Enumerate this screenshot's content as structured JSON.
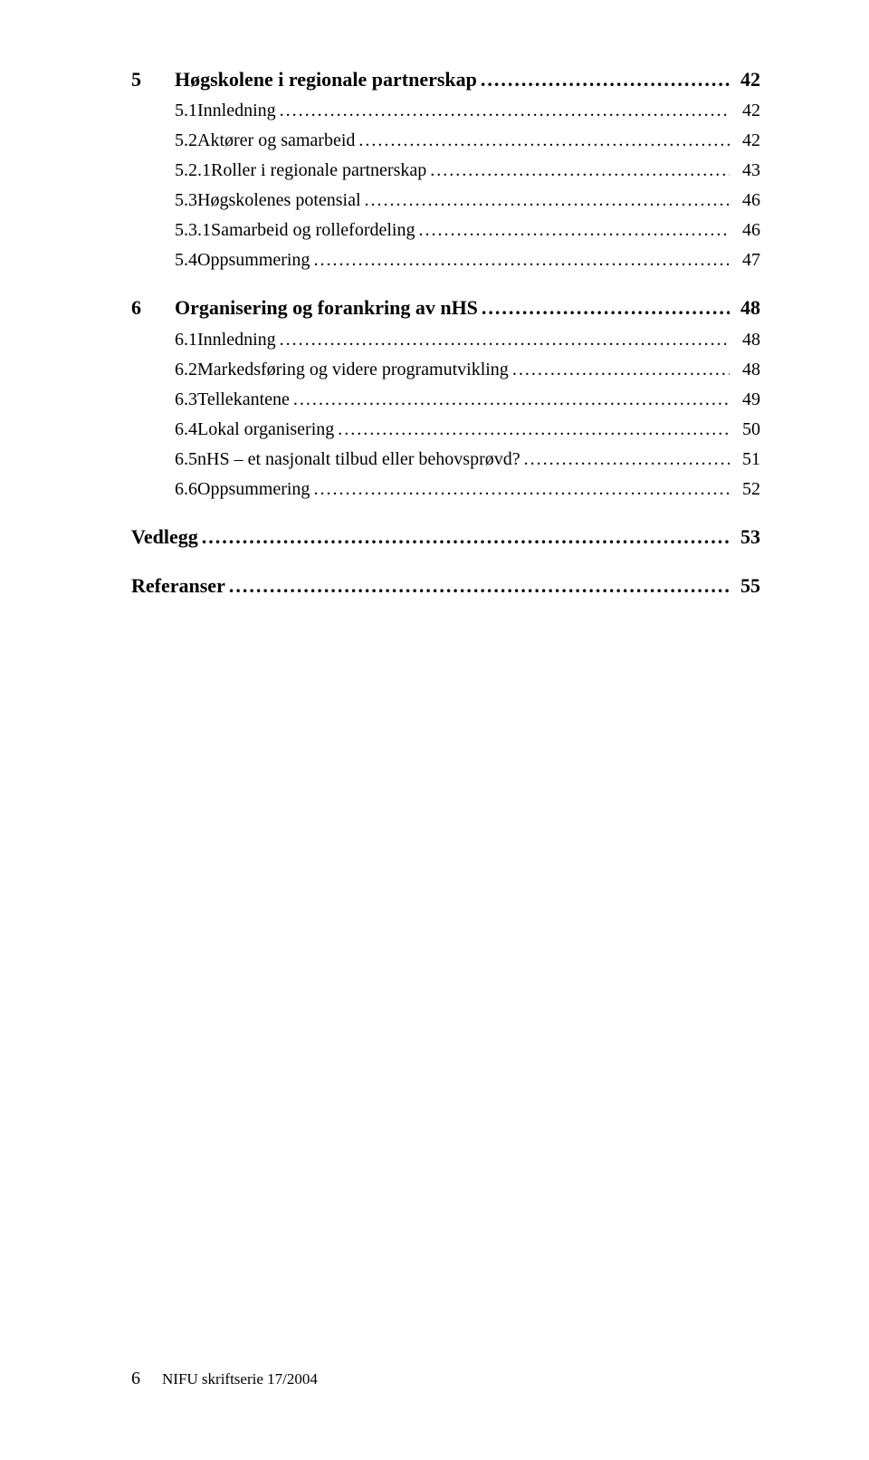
{
  "colors": {
    "bg": "#ffffff",
    "text": "#000000"
  },
  "typography": {
    "body_fontsize_pt": 15,
    "chapter_fontsize_pt": 16,
    "footer_fontsize_pt": 13
  },
  "toc": {
    "ch5": {
      "num": "5",
      "title": "Høgskolene i regionale partnerskap",
      "page": "42"
    },
    "s5_1": {
      "num": "5.1",
      "title": "Innledning",
      "page": "42"
    },
    "s5_2": {
      "num": "5.2",
      "title": "Aktører og samarbeid",
      "page": "42"
    },
    "s5_2_1": {
      "num": "5.2.1",
      "title": "Roller i regionale partnerskap",
      "page": "43"
    },
    "s5_3": {
      "num": "5.3",
      "title": "Høgskolenes potensial",
      "page": "46"
    },
    "s5_3_1": {
      "num": "5.3.1",
      "title": "Samarbeid og rollefordeling",
      "page": "46"
    },
    "s5_4": {
      "num": "5.4",
      "title": "Oppsummering",
      "page": "47"
    },
    "ch6": {
      "num": "6",
      "title": "Organisering og forankring av nHS",
      "page": "48"
    },
    "s6_1": {
      "num": "6.1",
      "title": "Innledning",
      "page": "48"
    },
    "s6_2": {
      "num": "6.2",
      "title": "Markedsføring og videre programutvikling",
      "page": "48"
    },
    "s6_3": {
      "num": "6.3",
      "title": "Tellekantene",
      "page": "49"
    },
    "s6_4": {
      "num": "6.4",
      "title": "Lokal organisering",
      "page": "50"
    },
    "s6_5": {
      "num": "6.5",
      "title": "nHS – et nasjonalt tilbud eller behovsprøvd?",
      "page": "51"
    },
    "s6_6": {
      "num": "6.6",
      "title": "Oppsummering",
      "page": "52"
    },
    "vedlegg": {
      "title": "Vedlegg",
      "page": "53"
    },
    "referanser": {
      "title": "Referanser",
      "page": "55"
    }
  },
  "footer": {
    "page_number": "6",
    "series": "NIFU skriftserie 17/2004"
  },
  "leader_dots": ".............................................................................................................................................................."
}
